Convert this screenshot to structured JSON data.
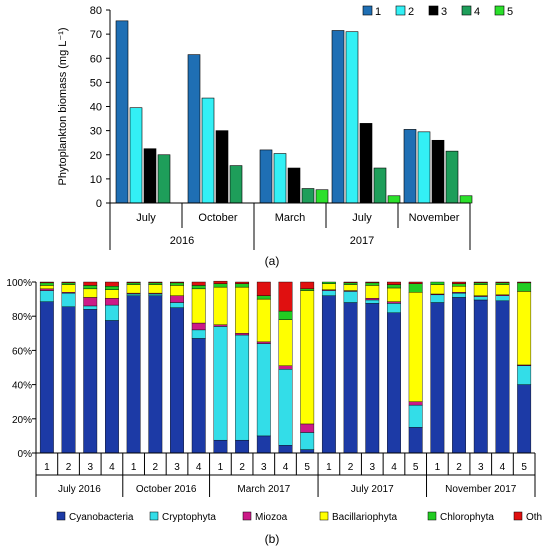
{
  "chart_data": [
    {
      "type": "bar",
      "panel_label": "(a)",
      "ylabel": "Phytoplankton biomass (mg L⁻¹)",
      "ylim": [
        0,
        80
      ],
      "yticks": [
        "0",
        "10",
        "20",
        "30",
        "40",
        "50",
        "60",
        "70",
        "80"
      ],
      "grid": false,
      "legend_position": "top-right",
      "categories": [
        "July",
        "October",
        "March",
        "July",
        "November"
      ],
      "years": [
        {
          "label": "2016",
          "span": [
            0,
            1
          ]
        },
        {
          "label": "2017",
          "span": [
            2,
            4
          ]
        }
      ],
      "series": [
        {
          "name": "1",
          "color": "#1f6fb4",
          "values": [
            75.5,
            61.5,
            22,
            71.5,
            30.5
          ]
        },
        {
          "name": "2",
          "color": "#33f0f5",
          "values": [
            39.5,
            43.5,
            20.5,
            71,
            29.5
          ]
        },
        {
          "name": "3",
          "color": "#000000",
          "values": [
            22.5,
            30,
            14.5,
            33,
            26
          ]
        },
        {
          "name": "4",
          "color": "#1e9e5a",
          "values": [
            20,
            15.5,
            6,
            14.5,
            21.5
          ]
        },
        {
          "name": "5",
          "color": "#2be02b",
          "values": [
            null,
            null,
            5.5,
            3,
            3
          ]
        }
      ]
    },
    {
      "type": "bar",
      "stacked": true,
      "panel_label": "(b)",
      "ylim": [
        0,
        100
      ],
      "yticks": [
        "0%",
        "20%",
        "40%",
        "60%",
        "80%",
        "100%"
      ],
      "grid": false,
      "legend_position": "bottom",
      "groups": [
        {
          "label": "July 2016",
          "stations": [
            "1",
            "2",
            "3",
            "4"
          ]
        },
        {
          "label": "October 2016",
          "stations": [
            "1",
            "2",
            "3",
            "4"
          ]
        },
        {
          "label": "March 2017",
          "stations": [
            "1",
            "2",
            "3",
            "4",
            "5"
          ]
        },
        {
          "label": "July 2017",
          "stations": [
            "1",
            "2",
            "3",
            "4",
            "5"
          ]
        },
        {
          "label": "November 2017",
          "stations": [
            "1",
            "2",
            "3",
            "4",
            "5"
          ]
        }
      ],
      "series": [
        {
          "name": "Cyanobacteria",
          "color": "#1c3aa6",
          "values": [
            88.5,
            85.5,
            84,
            77.5,
            92,
            92,
            85,
            67,
            7.5,
            7.5,
            10,
            4.5,
            2,
            92,
            88,
            87.5,
            82,
            15,
            88,
            91,
            89.5,
            89,
            40
          ]
        },
        {
          "name": "Cryptophyta",
          "color": "#33dde8",
          "values": [
            6.5,
            8,
            2,
            9,
            1,
            1,
            3,
            5,
            66.5,
            61.5,
            54,
            44.5,
            10,
            3,
            6.5,
            2,
            5.5,
            13,
            4.5,
            2.5,
            2,
            3,
            11
          ]
        },
        {
          "name": "Miozoa",
          "color": "#cc1a88",
          "values": [
            1,
            0.5,
            5,
            4,
            0.5,
            0.5,
            4,
            4,
            1,
            1,
            1,
            2,
            5,
            0.5,
            0.5,
            1,
            1,
            2,
            0.5,
            0.5,
            0.5,
            0.5,
            0.5
          ]
        },
        {
          "name": "Bacillariophyta",
          "color": "#ffff00",
          "values": [
            2,
            4.5,
            5,
            5,
            5,
            5,
            6,
            20,
            22,
            27,
            25,
            27,
            78,
            3.5,
            3.5,
            7.5,
            8,
            64,
            5.5,
            3.5,
            6.5,
            6,
            43
          ]
        },
        {
          "name": "Chlorophyta",
          "color": "#22cc22",
          "values": [
            1.5,
            1,
            2,
            2,
            1,
            1,
            1.5,
            2,
            2,
            2,
            2,
            5,
            1,
            1,
            1,
            1.5,
            2,
            5,
            1.5,
            1.5,
            1,
            1,
            5
          ]
        },
        {
          "name": "Others",
          "color": "#e01010",
          "values": [
            0.5,
            0.5,
            2,
            2.5,
            0.5,
            0.5,
            0.5,
            2,
            1.5,
            1,
            8,
            17,
            4,
            0,
            0.5,
            0.5,
            1.5,
            1,
            0,
            1,
            0.5,
            0.5,
            0.5
          ]
        }
      ]
    }
  ]
}
